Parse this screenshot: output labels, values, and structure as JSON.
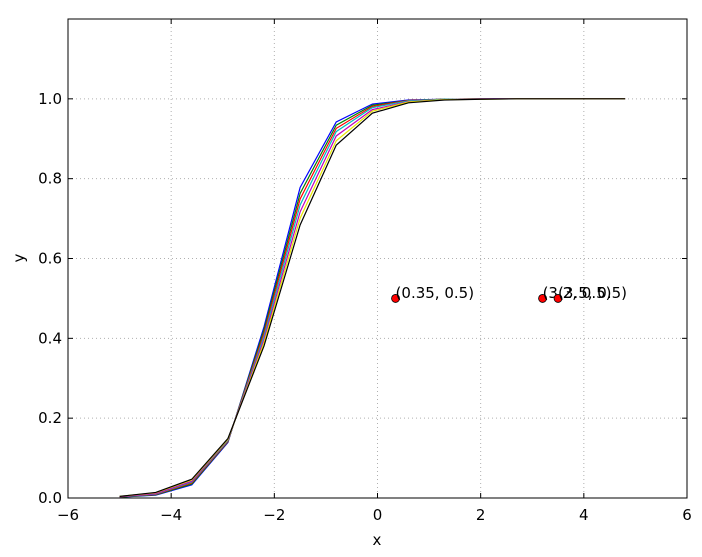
{
  "chart_data": {
    "type": "line",
    "xlabel": "x",
    "ylabel": "y",
    "x": [
      -5,
      -4.3,
      -3.6,
      -2.9,
      -2.2,
      -1.5,
      -0.8,
      -0.1,
      0.6,
      1.3,
      2.0,
      2.7,
      3.4,
      4.1,
      4.8
    ],
    "series": [
      {
        "color": "#0000ff",
        "values": [
          0.002,
          0.007,
          0.033,
          0.139,
          0.429,
          0.778,
          0.942,
          0.987,
          0.997,
          0.999,
          1,
          1,
          1,
          1,
          1
        ]
      },
      {
        "color": "#008000",
        "values": [
          0.002,
          0.008,
          0.035,
          0.141,
          0.421,
          0.763,
          0.934,
          0.984,
          0.996,
          0.999,
          1,
          1,
          1,
          1,
          1
        ]
      },
      {
        "color": "#ff0000",
        "values": [
          0.003,
          0.009,
          0.038,
          0.142,
          0.413,
          0.749,
          0.926,
          0.981,
          0.996,
          0.999,
          1,
          1,
          1,
          1,
          1
        ]
      },
      {
        "color": "#00bfbf",
        "values": [
          0.003,
          0.01,
          0.04,
          0.144,
          0.405,
          0.734,
          0.918,
          0.978,
          0.995,
          0.999,
          1,
          1,
          1,
          1,
          1
        ]
      },
      {
        "color": "#bf00bf",
        "values": [
          0.003,
          0.011,
          0.042,
          0.146,
          0.397,
          0.717,
          0.907,
          0.973,
          0.993,
          0.998,
          1,
          1,
          1,
          1,
          1
        ]
      },
      {
        "color": "#e6e600",
        "values": [
          0.004,
          0.013,
          0.045,
          0.147,
          0.389,
          0.701,
          0.895,
          0.969,
          0.992,
          0.998,
          0.999,
          1,
          1,
          1,
          1
        ]
      },
      {
        "color": "#000000",
        "values": [
          0.004,
          0.014,
          0.047,
          0.149,
          0.381,
          0.684,
          0.884,
          0.964,
          0.99,
          0.997,
          0.999,
          1,
          1,
          1,
          1
        ]
      }
    ],
    "points": [
      {
        "x": 0.35,
        "y": 0.5,
        "label": "(0.35, 0.5)"
      },
      {
        "x": 3.2,
        "y": 0.5,
        "label": "(3.2, 0.5)"
      },
      {
        "x": 3.5,
        "y": 0.5,
        "label": "(3.5, 0.5)"
      }
    ],
    "point_color": "#ff0000",
    "xlim": [
      -6,
      6
    ],
    "xticks": [
      {
        "value": -6,
        "label": "−6"
      },
      {
        "value": -4,
        "label": "−4"
      },
      {
        "value": -2,
        "label": "−2"
      },
      0,
      2,
      4,
      6
    ],
    "ylim": [
      0,
      1.2
    ],
    "yticks": [
      {
        "value": 0,
        "label": "0.0"
      },
      0.2,
      0.4,
      0.6,
      0.8,
      {
        "value": 1,
        "label": "1.0"
      }
    ],
    "grid": true
  }
}
